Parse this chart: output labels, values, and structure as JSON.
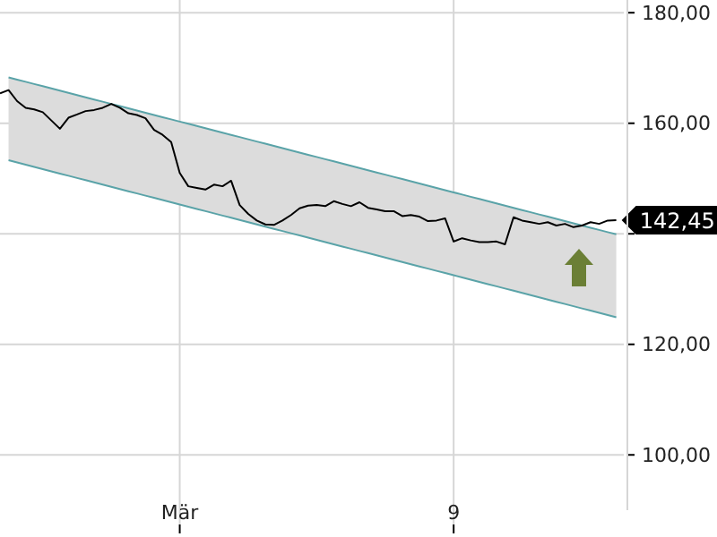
{
  "chart_data": {
    "type": "line",
    "ylim": [
      90,
      182.3
    ],
    "categories": [
      null,
      null,
      null,
      null,
      null,
      null,
      null,
      null,
      null,
      null,
      null,
      null,
      null,
      null,
      null,
      null,
      null,
      null,
      null,
      null,
      null,
      "Mär",
      null,
      null,
      null,
      null,
      null,
      null,
      null,
      null,
      null,
      null,
      null,
      null,
      null,
      null,
      null,
      null,
      null,
      null,
      null,
      null,
      null,
      null,
      null,
      null,
      null,
      null,
      null,
      null,
      null,
      null,
      null,
      "9",
      null,
      null,
      null,
      null,
      null,
      null,
      null,
      null,
      null,
      null,
      null,
      null,
      null,
      null,
      null,
      null,
      null,
      null,
      null
    ],
    "yticks": [
      {
        "value": 100,
        "label": "100,00"
      },
      {
        "value": 120,
        "label": "120,00"
      },
      {
        "value": 140,
        "label": null
      },
      {
        "value": 160,
        "label": "160,00"
      },
      {
        "value": 180,
        "label": "180,00"
      }
    ],
    "grid": true,
    "line_style": "solid",
    "marker": "none",
    "annotations": [
      "142,45"
    ],
    "series": [
      {
        "type": "line",
        "color": "#000000",
        "values": [
          165.4,
          166,
          164,
          162.8,
          162.5,
          162,
          160.5,
          159,
          161,
          161.6,
          162.2,
          162.4,
          162.8,
          163.5,
          162.8,
          161.8,
          161.5,
          160.9,
          158.8,
          157.9,
          156.6,
          151,
          148.6,
          148.3,
          148,
          148.9,
          148.6,
          149.6,
          145.2,
          143.6,
          142.4,
          141.7,
          141.6,
          142.4,
          143.4,
          144.6,
          145.1,
          145.2,
          145,
          145.9,
          145.4,
          145,
          145.7,
          144.7,
          144.4,
          144.1,
          144.1,
          143.2,
          143.4,
          143.1,
          142.3,
          142.4,
          142.8,
          138.6,
          139.2,
          138.8,
          138.5,
          138.5,
          138.6,
          138.1,
          143,
          142.4,
          142.1,
          141.8,
          142.1,
          141.5,
          141.8,
          141.2,
          141.5,
          142.1,
          141.8,
          142.4,
          142.45
        ]
      },
      {
        "type": "line",
        "color": "#5aa3a8",
        "values": [
          null,
          168.3,
          167.9,
          167.5,
          167.1,
          166.7,
          166.3,
          165.9,
          165.5,
          165.1,
          164.7,
          164.3,
          163.9,
          163.5,
          163.1,
          162.7,
          162.3,
          161.9,
          161.5,
          161.1,
          160.7,
          160.3,
          159.9,
          159.5,
          159.1,
          158.7,
          158.3,
          157.9,
          157.5,
          157.1,
          156.7,
          156.3,
          155.9,
          155.5,
          155.1,
          154.7,
          154.3,
          153.9,
          153.5,
          153.1,
          152.7,
          152.3,
          151.9,
          151.5,
          151.1,
          150.7,
          150.3,
          149.9,
          149.5,
          149.1,
          148.7,
          148.3,
          147.9,
          147.5,
          147.1,
          146.7,
          146.3,
          145.9,
          145.5,
          145.1,
          144.7,
          144.3,
          143.9,
          143.5,
          143.1,
          142.7,
          142.3,
          141.9,
          141.5,
          141.1,
          140.7,
          140.3,
          139.9
        ],
        "upper": [
          null,
          168.3,
          167.9,
          167.5,
          167.1,
          166.7,
          166.3,
          165.9,
          165.5,
          165.1,
          164.7,
          164.3,
          163.9,
          163.5,
          163.1,
          162.7,
          162.3,
          161.9,
          161.5,
          161.1,
          160.7,
          160.3,
          159.9,
          159.5,
          159.1,
          158.7,
          158.3,
          157.9,
          157.5,
          157.1,
          156.7,
          156.3,
          155.9,
          155.5,
          155.1,
          154.7,
          154.3,
          153.9,
          153.5,
          153.1,
          152.7,
          152.3,
          151.9,
          151.5,
          151.1,
          150.7,
          150.3,
          149.9,
          149.5,
          149.1,
          148.7,
          148.3,
          147.9,
          147.5,
          147.1,
          146.7,
          146.3,
          145.9,
          145.5,
          145.1,
          144.7,
          144.3,
          143.9,
          143.5,
          143.1,
          142.7,
          142.3,
          141.9,
          141.5,
          141.1,
          140.7,
          140.3,
          139.9
        ],
        "lower": [
          null,
          153.3,
          152.9,
          152.5,
          152.1,
          151.7,
          151.3,
          150.9,
          150.5,
          150.1,
          149.7,
          149.3,
          148.9,
          148.5,
          148.1,
          147.7,
          147.3,
          146.9,
          146.5,
          146.1,
          145.7,
          145.3,
          144.9,
          144.5,
          144.1,
          143.7,
          143.3,
          142.9,
          142.5,
          142.1,
          141.7,
          141.3,
          140.9,
          140.5,
          140.1,
          139.7,
          139.3,
          138.9,
          138.5,
          138.1,
          137.7,
          137.3,
          136.9,
          136.5,
          136.1,
          135.7,
          135.3,
          134.9,
          134.5,
          134.1,
          133.7,
          133.3,
          132.9,
          132.5,
          132.1,
          131.7,
          131.3,
          130.9,
          130.5,
          130.1,
          129.7,
          129.3,
          128.9,
          128.5,
          128.1,
          127.7,
          127.3,
          126.9,
          126.5,
          126.1,
          125.7,
          125.3,
          124.9
        ]
      },
      {
        "type": "line",
        "color": "#5aa3a8",
        "values": [
          null,
          153.3,
          152.9,
          152.5,
          152.1,
          151.7,
          151.3,
          150.9,
          150.5,
          150.1,
          149.7,
          149.3,
          148.9,
          148.5,
          148.1,
          147.7,
          147.3,
          146.9,
          146.5,
          146.1,
          145.7,
          145.3,
          144.9,
          144.5,
          144.1,
          143.7,
          143.3,
          142.9,
          142.5,
          142.1,
          141.7,
          141.3,
          140.9,
          140.5,
          140.1,
          139.7,
          139.3,
          138.9,
          138.5,
          138.1,
          137.7,
          137.3,
          136.9,
          136.5,
          136.1,
          135.7,
          135.3,
          134.9,
          134.5,
          134.1,
          133.7,
          133.3,
          132.9,
          132.5,
          132.1,
          131.7,
          131.3,
          130.9,
          130.5,
          130.1,
          129.7,
          129.3,
          128.9,
          128.5,
          128.1,
          127.7,
          127.3,
          126.9,
          126.5,
          126.1,
          125.7,
          125.3,
          124.9
        ]
      }
    ]
  }
}
